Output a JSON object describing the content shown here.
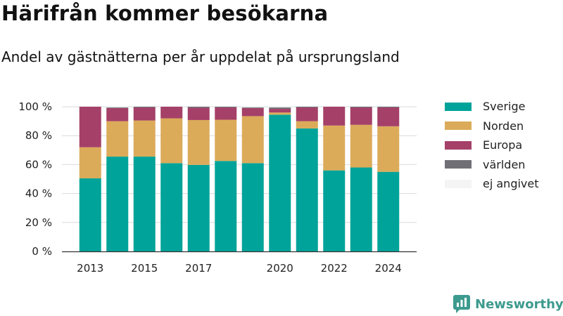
{
  "header": {
    "title": "Härifrån kommer besökarna",
    "subtitle": "Andel av gästnätterna per år uppdelat på ursprungsland"
  },
  "brand": {
    "name": "Newsworthy",
    "logo_icon": "bar-chart-speech-bubble-icon",
    "color": "#3d9a8e"
  },
  "chart_data": {
    "type": "bar",
    "stacked": true,
    "categories": [
      "2013",
      "2014",
      "2015",
      "2016",
      "2017",
      "2018",
      "2019",
      "2020",
      "2021",
      "2022",
      "2023",
      "2024"
    ],
    "x_tick_labels": [
      "2013",
      "2015",
      "2017",
      "2020",
      "2022",
      "2024"
    ],
    "y_ticks": [
      0,
      20,
      40,
      60,
      80,
      100
    ],
    "y_tick_suffix": " %",
    "ylim": [
      0,
      100
    ],
    "grid": true,
    "legend_position": "right",
    "series": [
      {
        "name": "Sverige",
        "color": "#00a399",
        "values": [
          50.5,
          65.5,
          65.5,
          61,
          59.8,
          62.5,
          61,
          94.5,
          85,
          56,
          58,
          55
        ]
      },
      {
        "name": "Norden",
        "color": "#dbab5a",
        "values": [
          21.5,
          24.5,
          25,
          31,
          31,
          28.5,
          32.5,
          1.5,
          5,
          31,
          29.5,
          31.5
        ]
      },
      {
        "name": "Europa",
        "color": "#a54068",
        "values": [
          28,
          9,
          9,
          8,
          8.5,
          8.5,
          5.5,
          2.5,
          9.5,
          13,
          12,
          13
        ]
      },
      {
        "name": "världen",
        "color": "#6f6f75",
        "values": [
          0,
          0.5,
          0.5,
          0,
          0.7,
          0.5,
          0.5,
          1,
          0.5,
          0,
          0.5,
          0.5
        ]
      },
      {
        "name": "ej angivet",
        "color": "#f4f4f4",
        "values": [
          0,
          0.5,
          0,
          0,
          0,
          0,
          0.5,
          0.5,
          0,
          0,
          0,
          0
        ]
      }
    ]
  }
}
